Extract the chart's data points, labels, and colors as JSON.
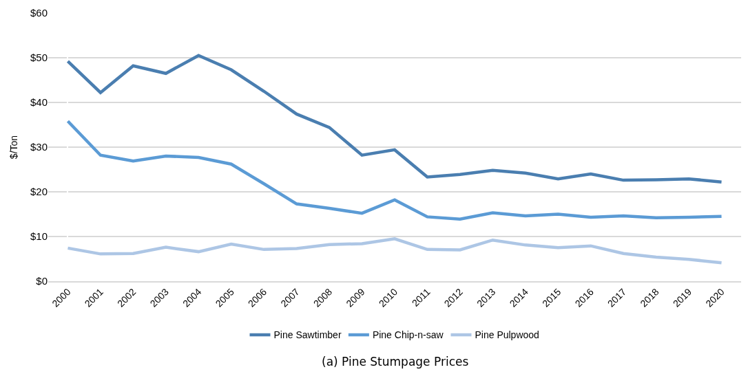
{
  "chart_data": {
    "type": "line",
    "ylabel": "$/Ton",
    "categories": [
      "2000",
      "2001",
      "2002",
      "2003",
      "2004",
      "2005",
      "2006",
      "2007",
      "2008",
      "2009",
      "2010",
      "2011",
      "2012",
      "2013",
      "2014",
      "2015",
      "2016",
      "2017",
      "2018",
      "2019",
      "2020"
    ],
    "series": [
      {
        "name": "Pine Sawtimber",
        "color": "#4a7eb0",
        "values": [
          49.2,
          42.2,
          48.2,
          46.5,
          50.5,
          47.3,
          42.5,
          37.4,
          34.4,
          28.2,
          29.4,
          23.3,
          23.9,
          24.8,
          24.2,
          22.9,
          24.0,
          22.6,
          22.7,
          22.9,
          22.2
        ]
      },
      {
        "name": "Pine Chip-n-saw",
        "color": "#5b9bd5",
        "values": [
          35.8,
          28.2,
          26.9,
          28.0,
          27.7,
          26.2,
          21.8,
          17.3,
          16.3,
          15.2,
          18.2,
          14.4,
          13.9,
          15.3,
          14.6,
          15.0,
          14.3,
          14.6,
          14.2,
          14.3,
          14.5
        ]
      },
      {
        "name": "Pine Pulpwood",
        "color": "#adc6e5",
        "values": [
          7.4,
          6.1,
          6.2,
          7.6,
          6.6,
          8.3,
          7.1,
          7.3,
          8.2,
          8.4,
          9.5,
          7.1,
          7.0,
          9.2,
          8.1,
          7.5,
          7.9,
          6.2,
          5.4,
          4.9,
          4.1
        ]
      }
    ],
    "ylim": [
      0,
      60
    ],
    "yticks": [
      {
        "value": 0,
        "label": "$0"
      },
      {
        "value": 10,
        "label": "$10"
      },
      {
        "value": 20,
        "label": "$20"
      },
      {
        "value": 30,
        "label": "$30"
      },
      {
        "value": 40,
        "label": "$40"
      },
      {
        "value": 50,
        "label": "$50"
      },
      {
        "value": 60,
        "label": "$60"
      }
    ],
    "grid": "y",
    "legend": "bottom",
    "marker": "none",
    "line_style": "solid",
    "annotations": [
      "(a) Pine Stumpage Prices"
    ]
  }
}
